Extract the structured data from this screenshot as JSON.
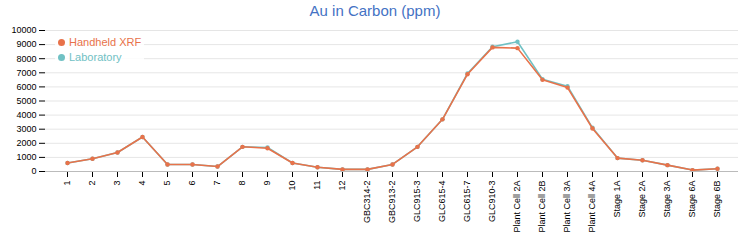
{
  "chart_data": {
    "type": "line",
    "title": "Au in Carbon (ppm)",
    "categories": [
      "1",
      "2",
      "3",
      "4",
      "5",
      "6",
      "7",
      "8",
      "9",
      "10",
      "11",
      "12",
      "GBC314-2",
      "GBC913-2",
      "GLC915-3",
      "GLC615-4",
      "GLC615-7",
      "GLC910-3",
      "Plant Cell 2A",
      "Plant Cell 2B",
      "Plant Cell 3A",
      "Plant Cell 4A",
      "Stage 1A",
      "Stage 2A",
      "Stage 3A",
      "Stage 6A",
      "Stage 6B"
    ],
    "series": [
      {
        "name": "Handheld XRF",
        "color": "#E8724A",
        "marker": "o",
        "values": [
          600,
          900,
          1350,
          2450,
          500,
          500,
          350,
          1750,
          1650,
          600,
          300,
          150,
          150,
          500,
          1750,
          3700,
          6900,
          8800,
          8750,
          6500,
          5950,
          3050,
          950,
          800,
          450,
          100,
          200
        ]
      },
      {
        "name": "Laboratory",
        "color": "#70C1C4",
        "marker": "o",
        "values": [
          600,
          900,
          1350,
          2450,
          500,
          500,
          350,
          1750,
          1700,
          600,
          300,
          150,
          150,
          500,
          1750,
          3700,
          6950,
          8850,
          9200,
          6550,
          6050,
          3100,
          950,
          800,
          450,
          100,
          200
        ]
      }
    ],
    "title_color": "#4472C4",
    "ylim": [
      0,
      10000
    ],
    "yticks": [
      0,
      1000,
      2000,
      3000,
      4000,
      5000,
      6000,
      7000,
      8000,
      9000,
      10000
    ],
    "grid": true,
    "legend": "upper left"
  }
}
